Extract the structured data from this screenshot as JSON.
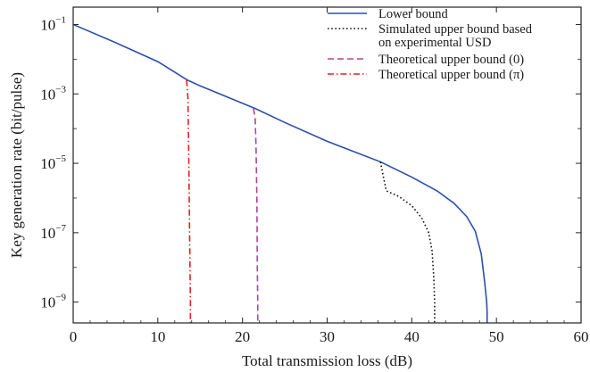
{
  "chart_data": {
    "type": "line",
    "xlabel": "Total transmission loss (dB)",
    "ylabel": "Key generation rate (bit/pulse)",
    "xlim": [
      0,
      60
    ],
    "ylim_log10": [
      -9.6,
      -0.5
    ],
    "yscale": "log",
    "grid": false,
    "legend_position": "top-right",
    "xticks": [
      0,
      10,
      20,
      30,
      40,
      50,
      60
    ],
    "xtick_labels": [
      "0",
      "10",
      "20",
      "30",
      "40",
      "50",
      "60"
    ],
    "yticks_log10": [
      -1,
      -3,
      -5,
      -7,
      -9
    ],
    "ytick_labels": [
      {
        "base": "10",
        "exp": "−1"
      },
      {
        "base": "10",
        "exp": "−3"
      },
      {
        "base": "10",
        "exp": "−5"
      },
      {
        "base": "10",
        "exp": "−7"
      },
      {
        "base": "10",
        "exp": "−9"
      }
    ],
    "series": [
      {
        "name": "Lower bound",
        "color": "#2b4fa8",
        "dash": "solid",
        "x": [
          0,
          5,
          10,
          13.5,
          15,
          21.5,
          25,
          30,
          36.3,
          40,
          43,
          45,
          46.5,
          47.5,
          48.2,
          48.6,
          48.85,
          48.9,
          48.9
        ],
        "y": [
          0.1,
          0.03,
          0.0085,
          0.0025,
          0.0017,
          0.00038,
          0.00015,
          4.3e-05,
          1.1e-05,
          4e-06,
          1.6e-06,
          7e-07,
          2.9e-07,
          1.1e-07,
          2.5e-08,
          4e-09,
          1e-09,
          5e-10,
          2.5e-10
        ]
      },
      {
        "name": "Simulated upper bound based on experimental USD",
        "color": "#111111",
        "dash": "dotted",
        "x": [
          36.3,
          36.7,
          37.0,
          38.5,
          40.0,
          41.2,
          42.0,
          42.4,
          42.6,
          42.7,
          42.7
        ],
        "y": [
          1.1e-05,
          3.5e-06,
          1.6e-06,
          1.1e-06,
          6e-07,
          2.6e-07,
          1e-07,
          3e-08,
          5e-09,
          1e-09,
          2.5e-10
        ]
      },
      {
        "name": "Theoretical upper bound (0)",
        "color": "#b0449b",
        "dash": "dashed",
        "x": [
          21.3,
          21.5,
          21.6,
          21.7,
          21.75,
          21.8,
          21.8
        ],
        "y": [
          0.00038,
          0.0002,
          3e-05,
          1e-06,
          1e-08,
          1e-09,
          2.5e-10
        ]
      },
      {
        "name": "Theoretical upper bound (π)",
        "label_main": "Theoretical upper bound (",
        "label_symbol": "π",
        "label_close": ")",
        "color": "#e02020",
        "dash": "dashdot",
        "x": [
          13.4,
          13.55,
          13.65,
          13.75,
          13.8,
          13.85,
          13.85
        ],
        "y": [
          0.0025,
          0.0008,
          2e-05,
          1e-07,
          1e-08,
          1e-09,
          2.5e-10
        ]
      }
    ],
    "legend": [
      {
        "lines": [
          "Lower bound"
        ]
      },
      {
        "lines": [
          "Simulated upper bound based",
          "on experimental USD"
        ]
      },
      {
        "lines": [
          "Theoretical upper bound (0)"
        ]
      },
      {
        "lines": [
          "Theoretical upper bound (π)"
        ]
      }
    ]
  }
}
